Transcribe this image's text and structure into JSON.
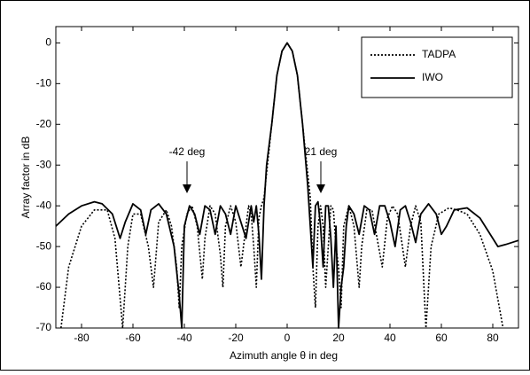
{
  "chart_data": {
    "type": "line",
    "xlabel": "Azimuth angle θ in deg",
    "ylabel": "Array factor in dB",
    "xlim": [
      -90,
      90
    ],
    "xticks": [
      -80,
      -60,
      -40,
      -20,
      0,
      20,
      40,
      60,
      80
    ],
    "ylim": [
      -70,
      4
    ],
    "yticks": [
      0,
      -10,
      -20,
      -30,
      -40,
      -50,
      -60,
      -70
    ],
    "legend": "top-right",
    "annotations": [
      "-42 deg",
      "21 deg"
    ],
    "series": [
      {
        "name": "TADPA",
        "color": "#000000",
        "style": "dotted",
        "x": [
          -88,
          -85,
          -80,
          -75,
          -70,
          -67,
          -64,
          -62,
          -60,
          -57,
          -54,
          -52,
          -50,
          -47,
          -45,
          -43,
          -42,
          -41,
          -39,
          -37,
          -35,
          -33,
          -32,
          -30,
          -28,
          -26,
          -25,
          -24,
          -22,
          -20,
          -18,
          -17,
          -15,
          -14,
          -13,
          -12,
          -11,
          -10,
          -9,
          -8,
          -6,
          -4,
          -2,
          0,
          2,
          4,
          6,
          8,
          9,
          10,
          11,
          12,
          13,
          14,
          15,
          16,
          17,
          18,
          19,
          20,
          21,
          22,
          24,
          26,
          28,
          29,
          31,
          33,
          35,
          37,
          39,
          41,
          43,
          46,
          48,
          50,
          52,
          54,
          56,
          59,
          63,
          66,
          70,
          75,
          80,
          84
        ],
        "values": [
          -70,
          -55,
          -45,
          -41,
          -41,
          -48,
          -70,
          -50,
          -42,
          -42,
          -50,
          -60,
          -44,
          -41,
          -45,
          -55,
          -65,
          -50,
          -42,
          -40,
          -45,
          -58,
          -48,
          -40,
          -42,
          -52,
          -60,
          -45,
          -40,
          -44,
          -55,
          -50,
          -40,
          -42,
          -50,
          -60,
          -43,
          -40,
          -38,
          -32,
          -20,
          -8,
          -2,
          0,
          -2,
          -8,
          -20,
          -32,
          -38,
          -55,
          -65,
          -45,
          -40,
          -45,
          -60,
          -50,
          -40,
          -41,
          -50,
          -55,
          -65,
          -45,
          -40,
          -45,
          -60,
          -50,
          -41,
          -41,
          -48,
          -55,
          -43,
          -40,
          -42,
          -55,
          -45,
          -40,
          -44,
          -70,
          -50,
          -42,
          -40.5,
          -41,
          -42,
          -47,
          -56,
          -70
        ]
      },
      {
        "name": "IWO",
        "color": "#000000",
        "style": "solid",
        "x": [
          -90,
          -85,
          -80,
          -75,
          -72,
          -68,
          -65,
          -63,
          -60,
          -57,
          -55,
          -53,
          -50,
          -47,
          -44,
          -42,
          -41,
          -40,
          -38,
          -36,
          -34,
          -32,
          -30,
          -28,
          -26,
          -24,
          -22,
          -20,
          -18,
          -16,
          -14,
          -13,
          -12,
          -11,
          -10,
          -9,
          -8,
          -6,
          -4,
          -2,
          0,
          2,
          4,
          6,
          8,
          10,
          11,
          12,
          13,
          14,
          15,
          16,
          17,
          18,
          19,
          20,
          21,
          22,
          23,
          24,
          26,
          28,
          30,
          32,
          34,
          36,
          38,
          40,
          42,
          44,
          46,
          48,
          50,
          52,
          55,
          58,
          60,
          62,
          65,
          70,
          75,
          80,
          82,
          85,
          90
        ],
        "values": [
          -45,
          -42,
          -40,
          -39,
          -39.5,
          -42,
          -48,
          -44,
          -39.5,
          -41,
          -47,
          -41,
          -39.5,
          -42,
          -50,
          -62,
          -70,
          -45,
          -40,
          -42,
          -47,
          -40,
          -41,
          -47,
          -40,
          -42,
          -47,
          -40,
          -44,
          -48,
          -40,
          -44,
          -40,
          -47,
          -58,
          -40,
          -30,
          -20,
          -8,
          -2,
          0,
          -2,
          -8,
          -20,
          -35,
          -55,
          -40,
          -39,
          -45,
          -55,
          -40,
          -40,
          -48,
          -60,
          -45,
          -70,
          -60,
          -55,
          -45,
          -40,
          -42,
          -47,
          -40,
          -41,
          -47,
          -40,
          -40,
          -44,
          -50,
          -41,
          -40,
          -44,
          -49,
          -42,
          -39.5,
          -42,
          -47,
          -45,
          -41,
          -40.5,
          -43,
          -48,
          -50,
          -49.5,
          -48.5
        ]
      }
    ]
  }
}
